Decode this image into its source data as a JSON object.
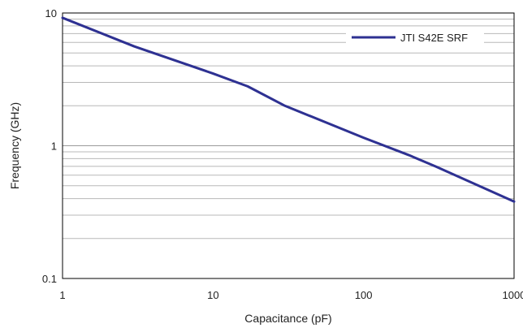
{
  "chart_data": {
    "type": "line",
    "xscale": "log",
    "yscale": "log",
    "xlabel": "Capacitance (pF)",
    "ylabel": "Frequency (GHz)",
    "xlim": [
      1,
      1000
    ],
    "ylim": [
      0.1,
      10
    ],
    "x_ticks": [
      {
        "value": 1,
        "label": "1"
      },
      {
        "value": 10,
        "label": "10"
      },
      {
        "value": 100,
        "label": "100"
      },
      {
        "value": 1000,
        "label": "1000"
      }
    ],
    "y_ticks": [
      {
        "value": 0.1,
        "label": "0.1"
      },
      {
        "value": 1,
        "label": "1"
      },
      {
        "value": 10,
        "label": "10"
      }
    ],
    "grid": {
      "horizontal_minor": true,
      "vertical": false
    },
    "legend_position": "top-right",
    "series": [
      {
        "name": "JTI S42E SRF",
        "color": "#2e3192",
        "x": [
          1,
          3,
          10,
          17,
          30,
          100,
          200,
          300,
          1000
        ],
        "y": [
          9.2,
          5.6,
          3.5,
          2.8,
          2.0,
          1.15,
          0.85,
          0.7,
          0.38
        ]
      }
    ]
  }
}
